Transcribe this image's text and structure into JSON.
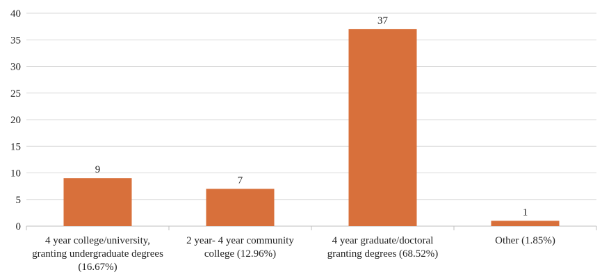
{
  "chart_data": {
    "type": "bar",
    "categories": [
      "4 year college/university, granting undergraduate degrees (16.67%)",
      "2 year- 4 year community college (12.96%)",
      "4 year graduate/doctoral granting degrees (68.52%)",
      "Other (1.85%)"
    ],
    "values": [
      9,
      7,
      37,
      1
    ],
    "color": "#d8703b",
    "ylim": [
      0,
      40
    ],
    "yticks": [
      0,
      5,
      10,
      15,
      20,
      25,
      30,
      35,
      40
    ],
    "grid": true
  }
}
